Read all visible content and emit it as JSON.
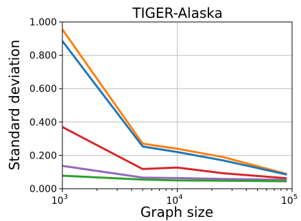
{
  "chart_data": {
    "type": "line",
    "title": "TIGER-Alaska",
    "xlabel": "Graph size",
    "ylabel": "Standard deviation",
    "xscale": "log",
    "xlim": [
      1000,
      100000
    ],
    "ylim": [
      0,
      1.0
    ],
    "grid": true,
    "xticks": [
      {
        "value": 1000,
        "base": "10",
        "exp": "3"
      },
      {
        "value": 10000,
        "base": "10",
        "exp": "4"
      },
      {
        "value": 100000,
        "base": "10",
        "exp": "5"
      }
    ],
    "yticks": [
      {
        "value": 0.0,
        "label": "0.000"
      },
      {
        "value": 0.2,
        "label": "0.200"
      },
      {
        "value": 0.4,
        "label": "0.400"
      },
      {
        "value": 0.6,
        "label": "0.600"
      },
      {
        "value": 0.8,
        "label": "0.800"
      },
      {
        "value": 1.0,
        "label": "1.000"
      }
    ],
    "x": [
      1000,
      5000,
      10000,
      25000,
      90000
    ],
    "series": [
      {
        "color": "#ff7f0e",
        "values": [
          0.955,
          0.27,
          0.24,
          0.19,
          0.088
        ]
      },
      {
        "color": "#1f77b4",
        "values": [
          0.885,
          0.253,
          0.22,
          0.17,
          0.085
        ]
      },
      {
        "color": "#d62728",
        "values": [
          0.37,
          0.118,
          0.127,
          0.093,
          0.063
        ]
      },
      {
        "color": "#9467bd",
        "values": [
          0.137,
          0.067,
          0.064,
          0.059,
          0.053
        ]
      },
      {
        "color": "#2ca02c",
        "values": [
          0.078,
          0.055,
          0.05,
          0.048,
          0.045
        ]
      }
    ]
  }
}
